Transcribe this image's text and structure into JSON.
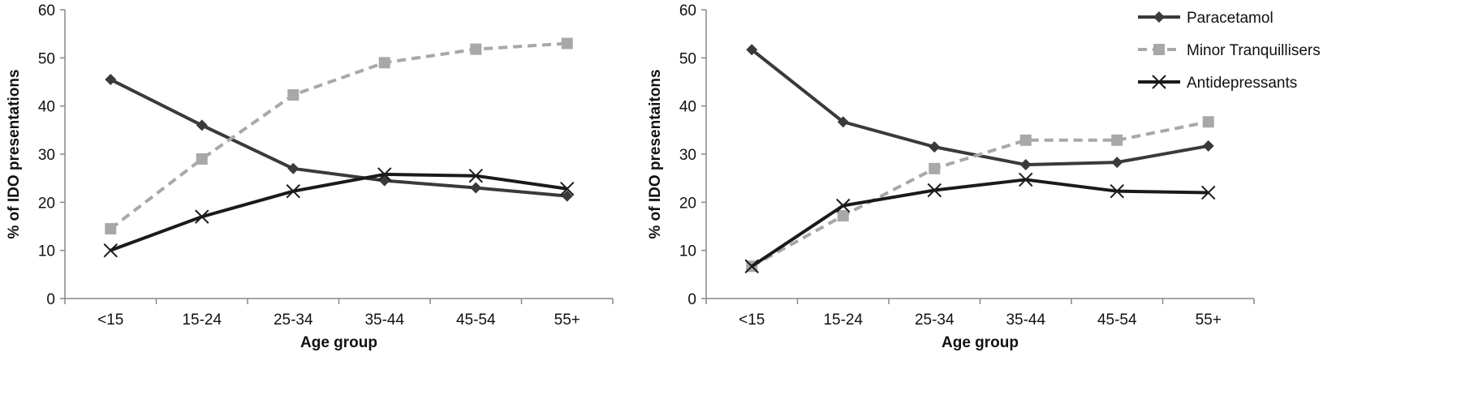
{
  "chart_data": [
    {
      "type": "line",
      "title": "",
      "xlabel": "Age group",
      "ylabel": "% of IDO presentations",
      "ylim": [
        0,
        60
      ],
      "yticks": [
        "0",
        "10",
        "20",
        "30",
        "40",
        "50",
        "60"
      ],
      "grid": false,
      "legend": "none",
      "categories": [
        "<15",
        "15-24",
        "25-34",
        "35-44",
        "45-54",
        "55+"
      ],
      "series": [
        {
          "name": "Paracetamol",
          "style": "solid",
          "marker": "diamond",
          "color": "#3a3a3a",
          "values": [
            45.5,
            36,
            27,
            24.5,
            23,
            21.3
          ]
        },
        {
          "name": "Minor Tranquillisers",
          "style": "dashed",
          "marker": "square",
          "color": "#a8a8a8",
          "values": [
            14.5,
            29,
            42.3,
            49,
            51.8,
            53
          ]
        },
        {
          "name": "Antidepressants",
          "style": "solid",
          "marker": "x",
          "color": "#1a1a1a",
          "values": [
            10,
            17,
            22.3,
            25.8,
            25.5,
            22.8
          ]
        }
      ]
    },
    {
      "type": "line",
      "title": "",
      "xlabel": "Age group",
      "ylabel": "% of IDO presentaitons",
      "ylim": [
        0,
        60
      ],
      "yticks": [
        "0",
        "10",
        "20",
        "30",
        "40",
        "50",
        "60"
      ],
      "grid": false,
      "legend": "top-right",
      "categories": [
        "<15",
        "15-24",
        "25-34",
        "35-44",
        "45-54",
        "55+"
      ],
      "series": [
        {
          "name": "Paracetamol",
          "style": "solid",
          "marker": "diamond",
          "color": "#3a3a3a",
          "values": [
            51.7,
            36.7,
            31.5,
            27.8,
            28.3,
            31.7
          ]
        },
        {
          "name": "Minor Tranquillisers",
          "style": "dashed",
          "marker": "square",
          "color": "#a8a8a8",
          "values": [
            6.7,
            17.2,
            27,
            32.9,
            32.9,
            36.7
          ]
        },
        {
          "name": "Antidepressants",
          "style": "solid",
          "marker": "x",
          "color": "#1a1a1a",
          "values": [
            6.7,
            19.3,
            22.5,
            24.7,
            22.3,
            22
          ]
        }
      ]
    }
  ]
}
